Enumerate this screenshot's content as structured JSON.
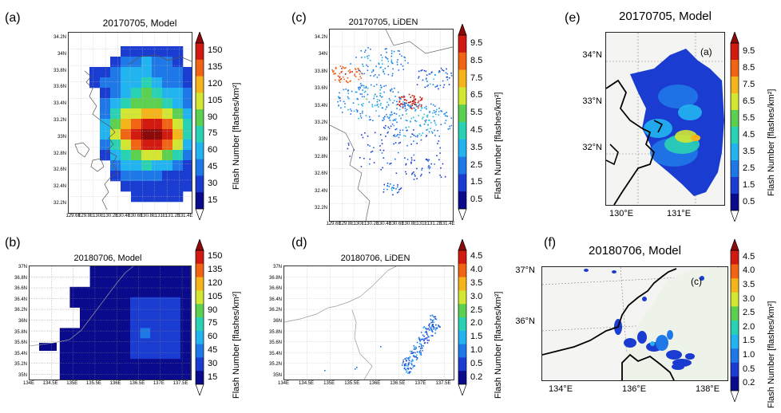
{
  "chart_data": [
    {
      "id": "a",
      "type": "heatmap",
      "panel_label": "(a)",
      "title": "20170705,  Model",
      "colorbar_ticks": [
        "150",
        "135",
        "120",
        "105",
        "90",
        "75",
        "60",
        "45",
        "30",
        "15"
      ],
      "colorbar_label": "Flash Number [flashes/km²]",
      "x_ticks": [
        "129.6E",
        "129.8E",
        "130E",
        "130.2E",
        "130.4E",
        "130.6E",
        "130.8E",
        "131E",
        "131.2E",
        "131.4E"
      ],
      "y_ticks": [
        "34.2N",
        "34N",
        "33.8N",
        "33.6N",
        "33.4N",
        "33.2N",
        "33N",
        "32.8N",
        "32.6N",
        "32.4N",
        "32.2N"
      ],
      "grid": true
    },
    {
      "id": "c",
      "type": "scatter",
      "panel_label": "(c)",
      "title": "20170705,  LiDEN",
      "colorbar_ticks": [
        "9.5",
        "8.5",
        "7.5",
        "6.5",
        "5.5",
        "4.5",
        "3.5",
        "2.5",
        "1.5",
        "0.5"
      ],
      "colorbar_label": "Flash Number [flashes/km²]",
      "x_ticks": [
        "129.6E",
        "129.8E",
        "130E",
        "130.2E",
        "130.4E",
        "130.6E",
        "130.8E",
        "131E",
        "131.2E",
        "131.4E"
      ],
      "y_ticks": [
        "34.2N",
        "34N",
        "33.8N",
        "33.6N",
        "33.4N",
        "33.2N",
        "33N",
        "32.8N",
        "32.6N",
        "32.4N",
        "32.2N"
      ],
      "grid": true
    },
    {
      "id": "e",
      "type": "heatmap",
      "panel_label": "(e)",
      "title": "20170705, Model",
      "inner_label": "(a)",
      "colorbar_ticks": [
        "9.5",
        "8.5",
        "7.5",
        "6.5",
        "5.5",
        "4.5",
        "3.5",
        "2.5",
        "1.5",
        "0.5"
      ],
      "colorbar_label": "Flash Number [flashes/km²]",
      "x_ticks": [
        "130°E",
        "131°E"
      ],
      "y_ticks": [
        "34°N",
        "33°N",
        "32°N"
      ],
      "grid": true
    },
    {
      "id": "b",
      "type": "heatmap",
      "panel_label": "(b)",
      "title": "20180706,  Model",
      "colorbar_ticks": [
        "150",
        "135",
        "120",
        "105",
        "90",
        "75",
        "60",
        "45",
        "30",
        "15"
      ],
      "colorbar_label": "Flash Number [flashes/km²]",
      "x_ticks": [
        "134E",
        "134.5E",
        "135E",
        "135.5E",
        "136E",
        "136.5E",
        "137E",
        "137.5E"
      ],
      "y_ticks": [
        "37N",
        "36.8N",
        "36.6N",
        "36.4N",
        "36.2N",
        "36N",
        "35.8N",
        "35.6N",
        "35.4N",
        "35.2N",
        "35N"
      ],
      "grid": true
    },
    {
      "id": "d",
      "type": "scatter",
      "panel_label": "(d)",
      "title": "20180706,  LiDEN",
      "colorbar_ticks": [
        "4.5",
        "4.0",
        "3.5",
        "3.0",
        "2.5",
        "2.0",
        "1.5",
        "1.0",
        "0.5",
        "0.2"
      ],
      "colorbar_label": "Flash Number [flashes/km²]",
      "x_ticks": [
        "134E",
        "134.5E",
        "135E",
        "135.5E",
        "136E",
        "136.5E",
        "137E",
        "137.5E"
      ],
      "y_ticks": [
        "37N",
        "36.8N",
        "36.6N",
        "36.4N",
        "36.2N",
        "36N",
        "35.8N",
        "35.6N",
        "35.4N",
        "35.2N",
        "35N"
      ],
      "grid": true
    },
    {
      "id": "f",
      "type": "heatmap",
      "panel_label": "(f)",
      "title": "20180706, Model",
      "inner_label": "(c)",
      "colorbar_ticks": [
        "4.5",
        "4.0",
        "3.5",
        "3.0",
        "2.5",
        "2.0",
        "1.5",
        "1.0",
        "0.5",
        "0.2"
      ],
      "colorbar_label": "Flash Number [flashes/km²]",
      "x_ticks": [
        "134°E",
        "136°E",
        "138°E"
      ],
      "y_ticks": [
        "37°N",
        "36°N"
      ],
      "grid": true
    }
  ],
  "colors": {
    "scale": [
      "#0a0a8c",
      "#1a3cd0",
      "#1f78e8",
      "#22b4f0",
      "#2ad2b4",
      "#5cd050",
      "#d2e632",
      "#f5b419",
      "#f06414",
      "#d21a10",
      "#8c0a0a"
    ]
  }
}
